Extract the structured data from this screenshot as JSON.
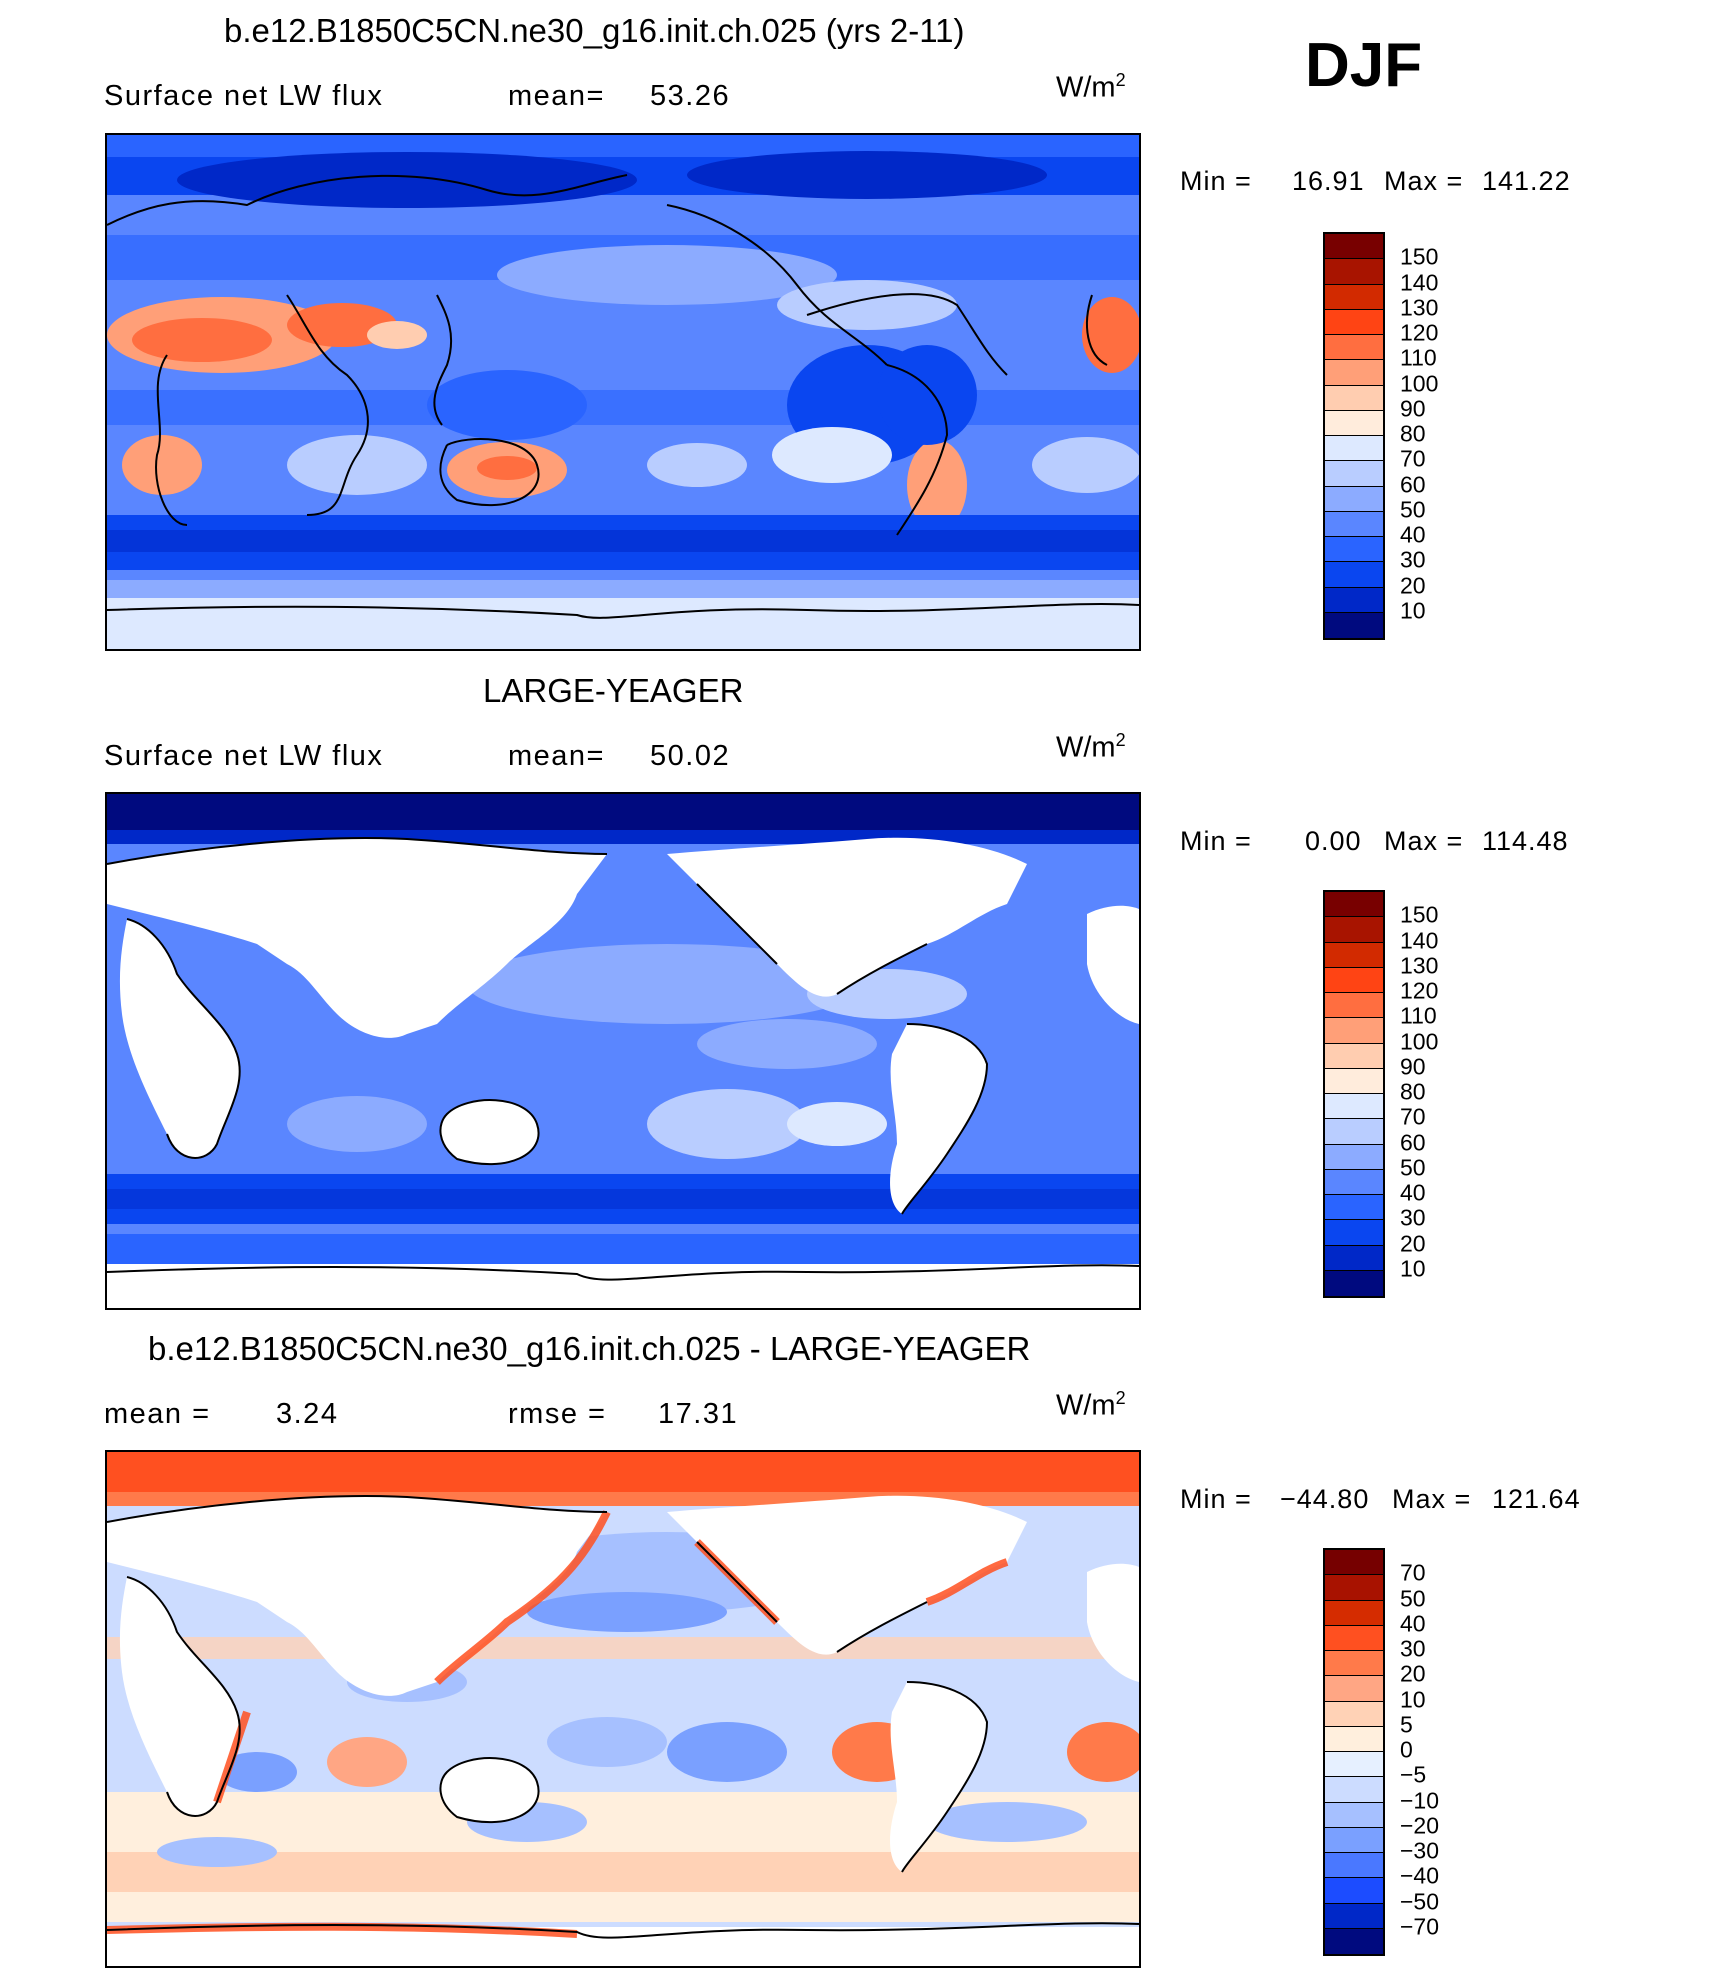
{
  "season": "DJF",
  "units_base": "W/m",
  "units_exp": "2",
  "colors": {
    "abs_scale": [
      "#000a7f",
      "#0028c8",
      "#0a46f0",
      "#2a64ff",
      "#5a86ff",
      "#8cabff",
      "#b9cdff",
      "#dde9ff",
      "#ffecdc",
      "#ffcdb0",
      "#ff9f78",
      "#ff6e40",
      "#ff4414",
      "#d22a00",
      "#a81400",
      "#780000"
    ],
    "diff_scale": [
      "#000a7f",
      "#0028c8",
      "#1c4cff",
      "#4a78ff",
      "#7aa0ff",
      "#a6c0ff",
      "#ccdcff",
      "#e6f0ff",
      "#ffefdd",
      "#ffd2b6",
      "#ffa684",
      "#ff7a4a",
      "#ff5020",
      "#d52c00",
      "#a81200",
      "#760000"
    ]
  },
  "panels": [
    {
      "title": "b.e12.B1850C5CN.ne30_g16.init.ch.025 (yrs 2-11)",
      "left_text": "Surface net LW flux",
      "mid_label": "mean=",
      "mid_value": "53.26",
      "min_label": "Min =",
      "min_value": "16.91",
      "max_label": "Max =",
      "max_value": "141.22",
      "colorbar_labels": [
        "150",
        "140",
        "130",
        "120",
        "110",
        "100",
        "90",
        "80",
        "70",
        "60",
        "50",
        "40",
        "30",
        "20",
        "10"
      ]
    },
    {
      "title": "LARGE-YEAGER",
      "left_text": "Surface net LW flux",
      "mid_label": "mean=",
      "mid_value": "50.02",
      "min_label": "Min =",
      "min_value": "0.00",
      "max_label": "Max =",
      "max_value": "114.48",
      "colorbar_labels": [
        "150",
        "140",
        "130",
        "120",
        "110",
        "100",
        "90",
        "80",
        "70",
        "60",
        "50",
        "40",
        "30",
        "20",
        "10"
      ]
    },
    {
      "title": "b.e12.B1850C5CN.ne30_g16.init.ch.025 - LARGE-YEAGER",
      "left_label": "mean =",
      "left_value": "3.24",
      "mid_label": "rmse =",
      "mid_value": "17.31",
      "min_label": "Min =",
      "min_value": "−44.80",
      "max_label": "Max =",
      "max_value": "121.64",
      "colorbar_labels": [
        "70",
        "50",
        "40",
        "30",
        "20",
        "10",
        "5",
        "0",
        "−5",
        "−10",
        "−20",
        "−30",
        "−40",
        "−50",
        "−70"
      ]
    }
  ]
}
